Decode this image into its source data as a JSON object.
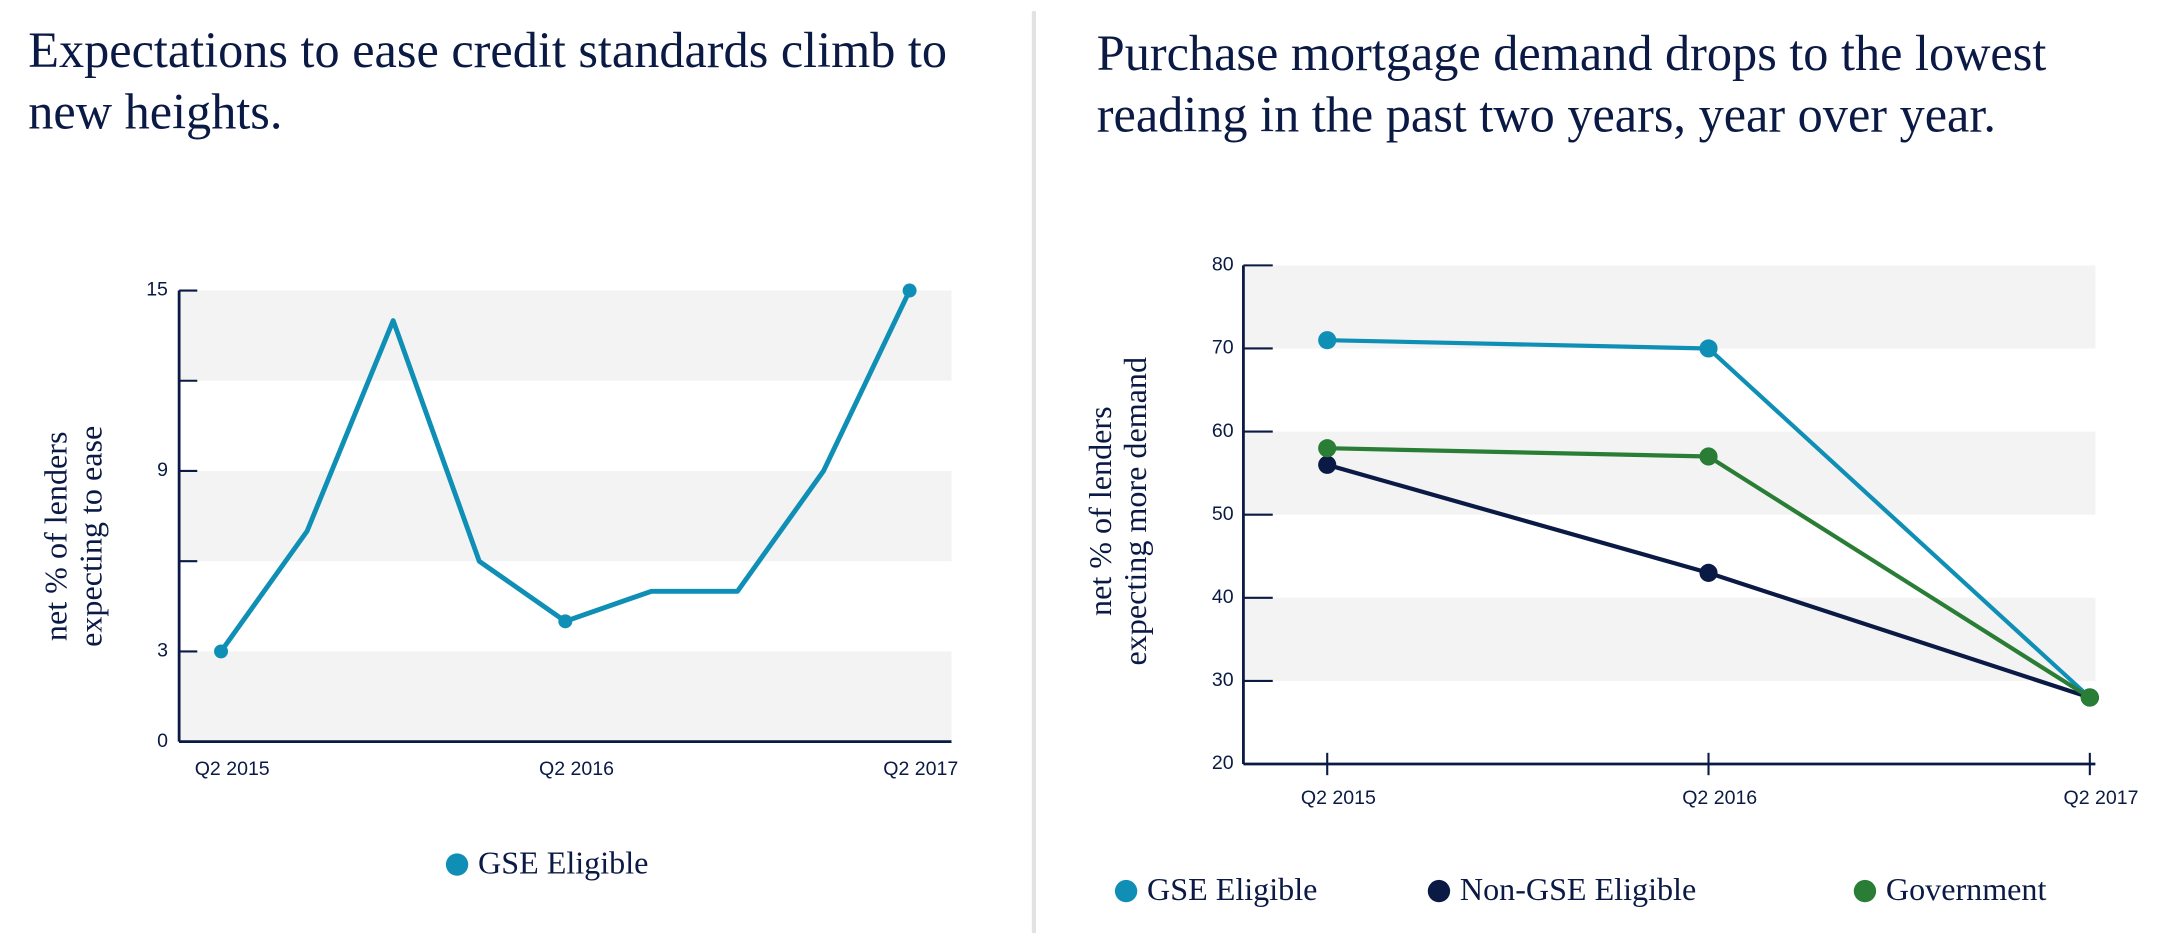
{
  "chart_data": [
    {
      "type": "line",
      "title": "Expectations to ease credit standards climb to new heights.",
      "ylabel": [
        "net % of lenders",
        "expecting to ease"
      ],
      "categories": [
        "Q2 2015",
        null,
        null,
        null,
        "Q2 2016",
        null,
        null,
        null,
        "Q2 2017"
      ],
      "series": [
        {
          "name": "GSE Eligible",
          "color": "#0f8fb5",
          "values": [
            3,
            7,
            14,
            6,
            4,
            5,
            5,
            9,
            15
          ]
        }
      ],
      "ylim": [
        0,
        15
      ],
      "yticks": [
        0,
        3,
        9,
        15
      ],
      "minor_yticks": [
        6,
        12
      ],
      "bands": true,
      "xtick_marks": false
    },
    {
      "type": "line",
      "title": "Purchase mortgage demand drops to the lowest reading in the past two years, year over year.",
      "ylabel": [
        "net % of lenders",
        "expecting more demand"
      ],
      "categories": [
        "Q2 2015",
        "Q2 2016",
        "Q2 2017"
      ],
      "series": [
        {
          "name": "GSE Eligible",
          "color": "#0f8fb5",
          "values": [
            71,
            70,
            28
          ]
        },
        {
          "name": "Non-GSE Eligible",
          "color": "#0b1a45",
          "values": [
            56,
            43,
            28
          ]
        },
        {
          "name": "Government",
          "color": "#2a7d35",
          "values": [
            58,
            57,
            28
          ]
        }
      ],
      "ylim": [
        20,
        80
      ],
      "yticks": [
        20,
        30,
        40,
        50,
        60,
        70,
        80
      ],
      "bands": true,
      "xtick_marks": true
    }
  ]
}
